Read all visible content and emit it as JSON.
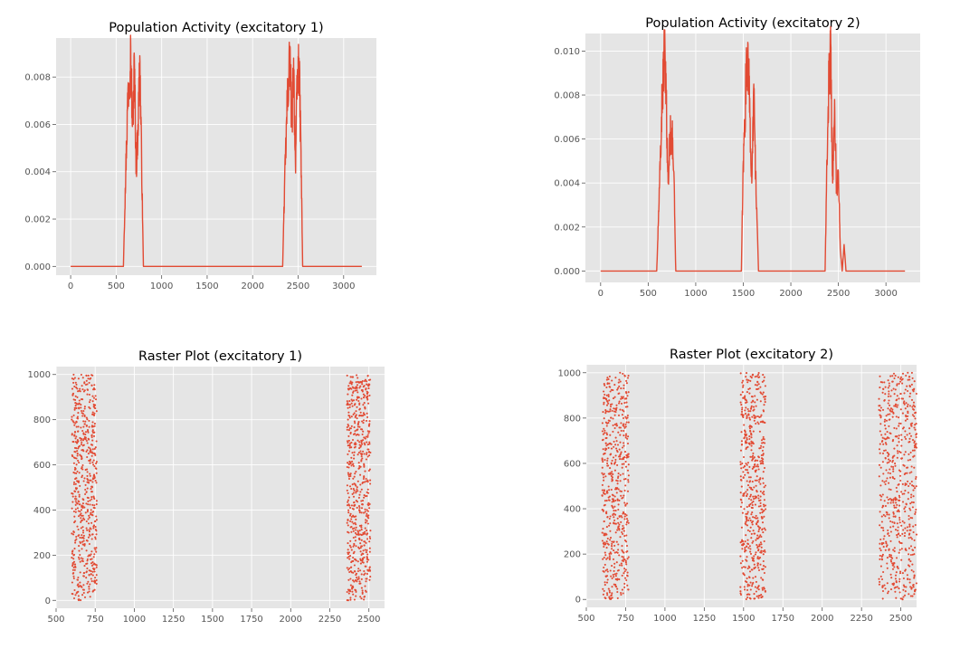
{
  "style": {
    "panel_bg": "#e5e5e5",
    "grid": "#ffffff",
    "line": "#e24a33",
    "dot": "#e24a33",
    "tick_text": "#555555"
  },
  "chart_data": [
    {
      "type": "line",
      "title": "Population Activity (excitatory 1)",
      "xlabel": "",
      "ylabel": "",
      "xlim": [
        -160,
        3360
      ],
      "ylim": [
        -0.00037,
        0.00965
      ],
      "xticks": [
        0,
        500,
        1000,
        1500,
        2000,
        2500,
        3000
      ],
      "yticks": [
        0.0,
        0.002,
        0.004,
        0.006,
        0.008
      ],
      "ytick_labels": [
        "0.000",
        "0.002",
        "0.004",
        "0.006",
        "0.008"
      ],
      "grid": true,
      "series": [
        {
          "x": [
            0,
            580,
            600,
            630,
            660,
            680,
            700,
            720,
            740,
            760,
            780,
            800,
            2330,
            2350,
            2380,
            2410,
            2430,
            2450,
            2470,
            2490,
            2510,
            2530,
            2550,
            3200
          ],
          "y": [
            0,
            0,
            0.0033,
            0.0075,
            0.0093,
            0.006,
            0.0088,
            0.0042,
            0.006,
            0.0089,
            0.0046,
            0,
            0,
            0.0033,
            0.007,
            0.0093,
            0.006,
            0.0088,
            0.0044,
            0.008,
            0.0088,
            0.0053,
            0,
            0
          ]
        }
      ]
    },
    {
      "type": "line",
      "title": "Population Activity (excitatory 2)",
      "xlabel": "",
      "ylabel": "",
      "xlim": [
        -160,
        3360
      ],
      "ylim": [
        -0.00052,
        0.0108
      ],
      "xticks": [
        0,
        500,
        1000,
        1500,
        2000,
        2500,
        3000
      ],
      "yticks": [
        0.0,
        0.002,
        0.004,
        0.006,
        0.008,
        0.01
      ],
      "ytick_labels": [
        "0.000",
        "0.002",
        "0.004",
        "0.006",
        "0.008",
        "0.010"
      ],
      "grid": true,
      "series": [
        {
          "x": [
            0,
            590,
            620,
            650,
            670,
            690,
            710,
            730,
            750,
            770,
            790,
            1480,
            1500,
            1530,
            1550,
            1570,
            1590,
            1610,
            1630,
            1660,
            2360,
            2380,
            2400,
            2420,
            2440,
            2460,
            2480,
            2500,
            2520,
            2540,
            2560,
            2580,
            2600,
            3200
          ],
          "y": [
            0,
            0,
            0.004,
            0.0085,
            0.0103,
            0.0078,
            0.004,
            0.0063,
            0.0065,
            0.0045,
            0,
            0,
            0.005,
            0.009,
            0.0103,
            0.007,
            0.004,
            0.0085,
            0.0045,
            0,
            0,
            0.005,
            0.009,
            0.0103,
            0.004,
            0.0078,
            0.0038,
            0.0045,
            0.001,
            0,
            0.0012,
            0,
            0,
            0
          ]
        }
      ]
    },
    {
      "type": "scatter",
      "title": "Raster Plot (excitatory 1)",
      "xlabel": "",
      "ylabel": "",
      "xlim": [
        500,
        2600
      ],
      "ylim": [
        -35,
        1035
      ],
      "xticks": [
        500,
        750,
        1000,
        1250,
        1500,
        1750,
        2000,
        2250,
        2500
      ],
      "yticks": [
        0,
        200,
        400,
        600,
        800,
        1000
      ],
      "grid": true,
      "spike_bands": [
        {
          "x": [
            600,
            760
          ],
          "n": 600
        },
        {
          "x": [
            2360,
            2510
          ],
          "n": 600
        }
      ],
      "neurons": [
        0,
        1000
      ]
    },
    {
      "type": "scatter",
      "title": "Raster Plot (excitatory 2)",
      "xlabel": "",
      "ylabel": "",
      "xlim": [
        500,
        2600
      ],
      "ylim": [
        -35,
        1035
      ],
      "xticks": [
        500,
        750,
        1000,
        1250,
        1500,
        1750,
        2000,
        2250,
        2500
      ],
      "yticks": [
        0,
        200,
        400,
        600,
        800,
        1000
      ],
      "grid": true,
      "spike_bands": [
        {
          "x": [
            600,
            770
          ],
          "n": 550
        },
        {
          "x": [
            1480,
            1640
          ],
          "n": 550
        },
        {
          "x": [
            2360,
            2600
          ],
          "n": 600
        }
      ],
      "neurons": [
        0,
        1000
      ]
    }
  ]
}
